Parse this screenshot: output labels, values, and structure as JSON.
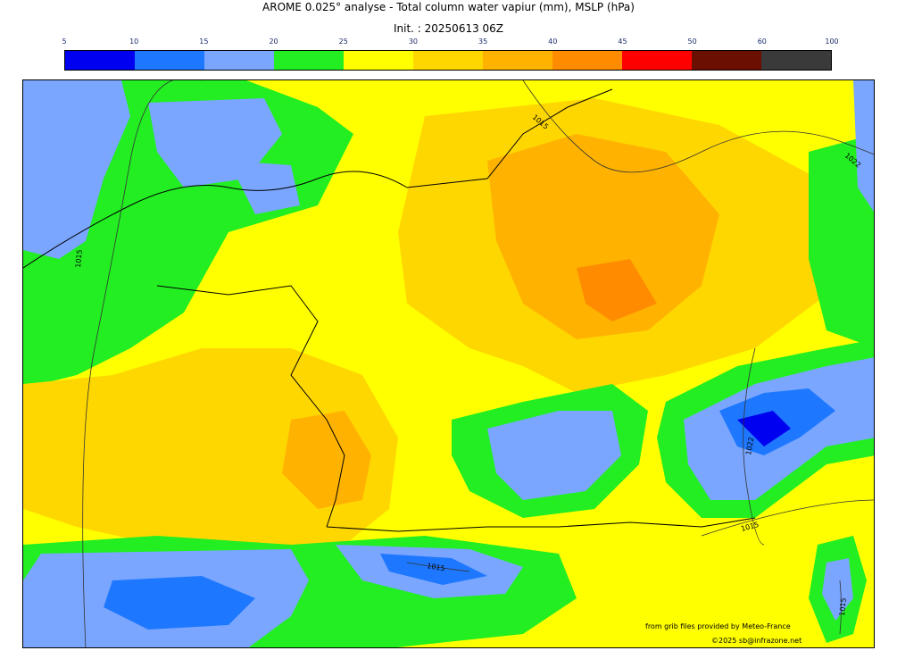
{
  "title": "AROME 0.025° analyse - Total column water vapiur (mm), MSLP (hPa)",
  "subtitle": "Init. : 20250613 06Z",
  "colorbar": {
    "ticks": [
      "5",
      "10",
      "15",
      "20",
      "25",
      "30",
      "35",
      "40",
      "45",
      "50",
      "60",
      "100"
    ],
    "colors": [
      "#0000f0",
      "#1e78ff",
      "#7aa6ff",
      "#22ee22",
      "#ffff00",
      "#ffd700",
      "#ffb300",
      "#ff8c00",
      "#ff0000",
      "#6b0f00",
      "#3a3a3a"
    ]
  },
  "isobars": [
    "1015",
    "1015",
    "1022",
    "1022",
    "1015",
    "1015",
    "1015"
  ],
  "credits": {
    "source": "from grib files provided by Meteo-France",
    "copyright": "©2025 sb@infrazone.net"
  }
}
